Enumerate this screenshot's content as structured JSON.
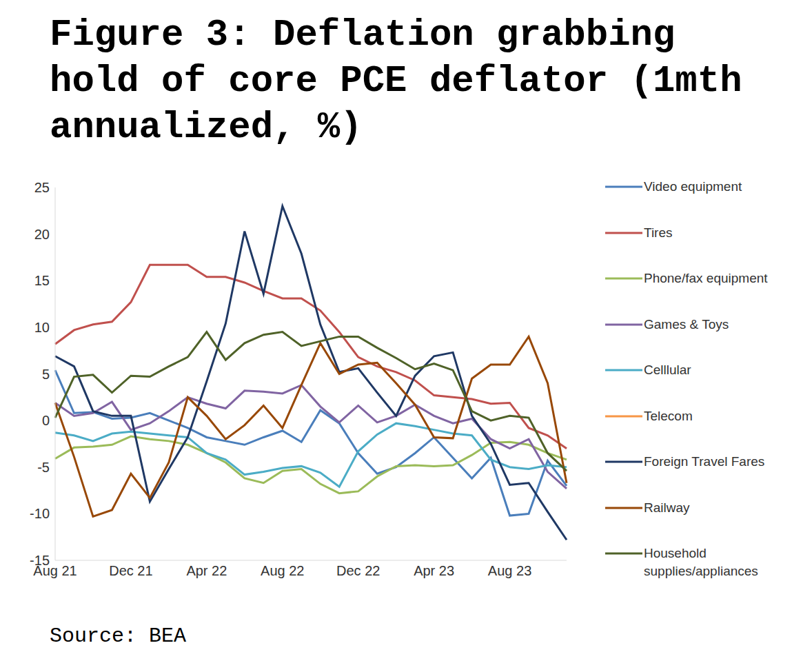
{
  "chart_data": {
    "type": "line",
    "title": "Figure 3: Deflation grabbing hold of core PCE deflator (1mth annualized, %)",
    "source": "Source: BEA",
    "categories": [
      "Aug 21",
      null,
      null,
      null,
      "Dec 21",
      null,
      null,
      null,
      "Apr 22",
      null,
      null,
      null,
      "Aug 22",
      null,
      null,
      null,
      "Dec 22",
      null,
      null,
      null,
      "Apr 23",
      null,
      null,
      null,
      "Aug 23",
      null,
      null,
      null
    ],
    "ylim": [
      -15,
      25
    ],
    "yticks": [
      -15,
      -10,
      -5,
      0,
      5,
      10,
      15,
      20,
      25
    ],
    "grid": false,
    "legend": "right",
    "series": [
      {
        "name": "Video equipment",
        "color": "#4a7ebb",
        "values": [
          5.4,
          0.8,
          0.9,
          0.2,
          0.3,
          0.8,
          0.0,
          -0.8,
          -1.8,
          -2.2,
          -2.6,
          -1.8,
          -1.1,
          -2.3,
          1.1,
          -0.3,
          -3.5,
          -5.7,
          -5.0,
          -3.5,
          -1.8,
          -4.0,
          -6.2,
          -4.0,
          -10.2,
          -10.0,
          -4.3,
          -7.0
        ]
      },
      {
        "name": "Tires",
        "color": "#c0504d",
        "values": [
          8.2,
          9.7,
          10.3,
          10.6,
          12.7,
          16.7,
          16.7,
          16.7,
          15.4,
          15.4,
          14.8,
          13.9,
          13.1,
          13.1,
          11.8,
          9.5,
          6.8,
          5.8,
          5.2,
          4.3,
          2.7,
          2.5,
          2.3,
          1.8,
          1.9,
          -0.8,
          -1.6,
          -3.0
        ]
      },
      {
        "name": "Phone/fax equipment",
        "color": "#9bbb59",
        "values": [
          -4.1,
          -2.9,
          -2.8,
          -2.6,
          -1.7,
          -2.0,
          -2.2,
          -2.6,
          -3.5,
          -4.5,
          -6.2,
          -6.7,
          -5.4,
          -5.2,
          -6.8,
          -7.8,
          -7.6,
          -6.0,
          -4.9,
          -4.8,
          -4.9,
          -4.8,
          -3.7,
          -2.4,
          -2.3,
          -2.6,
          -3.5,
          -4.2
        ]
      },
      {
        "name": "Games & Toys",
        "color": "#8064a2",
        "values": [
          1.9,
          0.5,
          0.8,
          2.0,
          -1.0,
          -0.3,
          1.0,
          2.5,
          1.8,
          1.3,
          3.2,
          3.1,
          2.9,
          3.8,
          1.5,
          -0.2,
          1.6,
          -0.2,
          0.5,
          1.7,
          0.5,
          -0.3,
          0.2,
          -2.0,
          -3.0,
          -2.0,
          -5.5,
          -7.3
        ]
      },
      {
        "name": "Celllular",
        "color": "#4bacc6",
        "values": [
          -1.3,
          -1.6,
          -2.2,
          -1.4,
          -1.2,
          -1.4,
          -1.6,
          -1.8,
          -3.5,
          -4.2,
          -5.8,
          -5.5,
          -5.1,
          -4.9,
          -5.6,
          -7.1,
          -3.3,
          -1.5,
          -0.3,
          -0.6,
          -1.0,
          -1.4,
          -1.6,
          -4.2,
          -5.0,
          -5.2,
          -4.8,
          -5.0
        ]
      },
      {
        "name": "Telecom",
        "color": "#f79646",
        "values": [
          null,
          null,
          null,
          null,
          null,
          null,
          null,
          null,
          null,
          null,
          null,
          null,
          null,
          null,
          null,
          null,
          null,
          null,
          null,
          null,
          null,
          null,
          null,
          null,
          null,
          null,
          null,
          null
        ]
      },
      {
        "name": "Foreign Travel Fares",
        "color": "#1f3864",
        "values": [
          6.9,
          5.8,
          1.0,
          0.5,
          0.5,
          -8.7,
          -5.2,
          -1.8,
          4.2,
          10.4,
          20.3,
          13.6,
          23.0,
          17.9,
          10.3,
          5.2,
          5.6,
          3.0,
          0.5,
          4.8,
          6.9,
          7.3,
          0.5,
          -2.5,
          -6.9,
          -6.7,
          -9.8,
          -12.8
        ]
      },
      {
        "name": "Railway",
        "color": "#984807",
        "values": [
          1.9,
          -3.9,
          -10.3,
          -9.6,
          -5.7,
          -8.3,
          -4.5,
          2.5,
          0.5,
          -2.0,
          -0.5,
          1.6,
          -0.8,
          3.8,
          8.3,
          5.0,
          6.0,
          6.2,
          4.0,
          1.7,
          -1.8,
          -1.9,
          4.5,
          6.0,
          6.0,
          9.0,
          4.0,
          -6.7
        ]
      },
      {
        "name": "Household supplies/appliances",
        "color": "#4f6228",
        "values": [
          0.3,
          4.7,
          4.9,
          3.0,
          4.8,
          4.7,
          5.8,
          6.8,
          9.5,
          6.5,
          8.3,
          9.2,
          9.5,
          8.0,
          8.5,
          9.0,
          9.0,
          7.8,
          6.7,
          5.5,
          6.1,
          5.4,
          1.0,
          0.0,
          0.5,
          0.3,
          -3.5,
          -5.4
        ]
      }
    ]
  }
}
